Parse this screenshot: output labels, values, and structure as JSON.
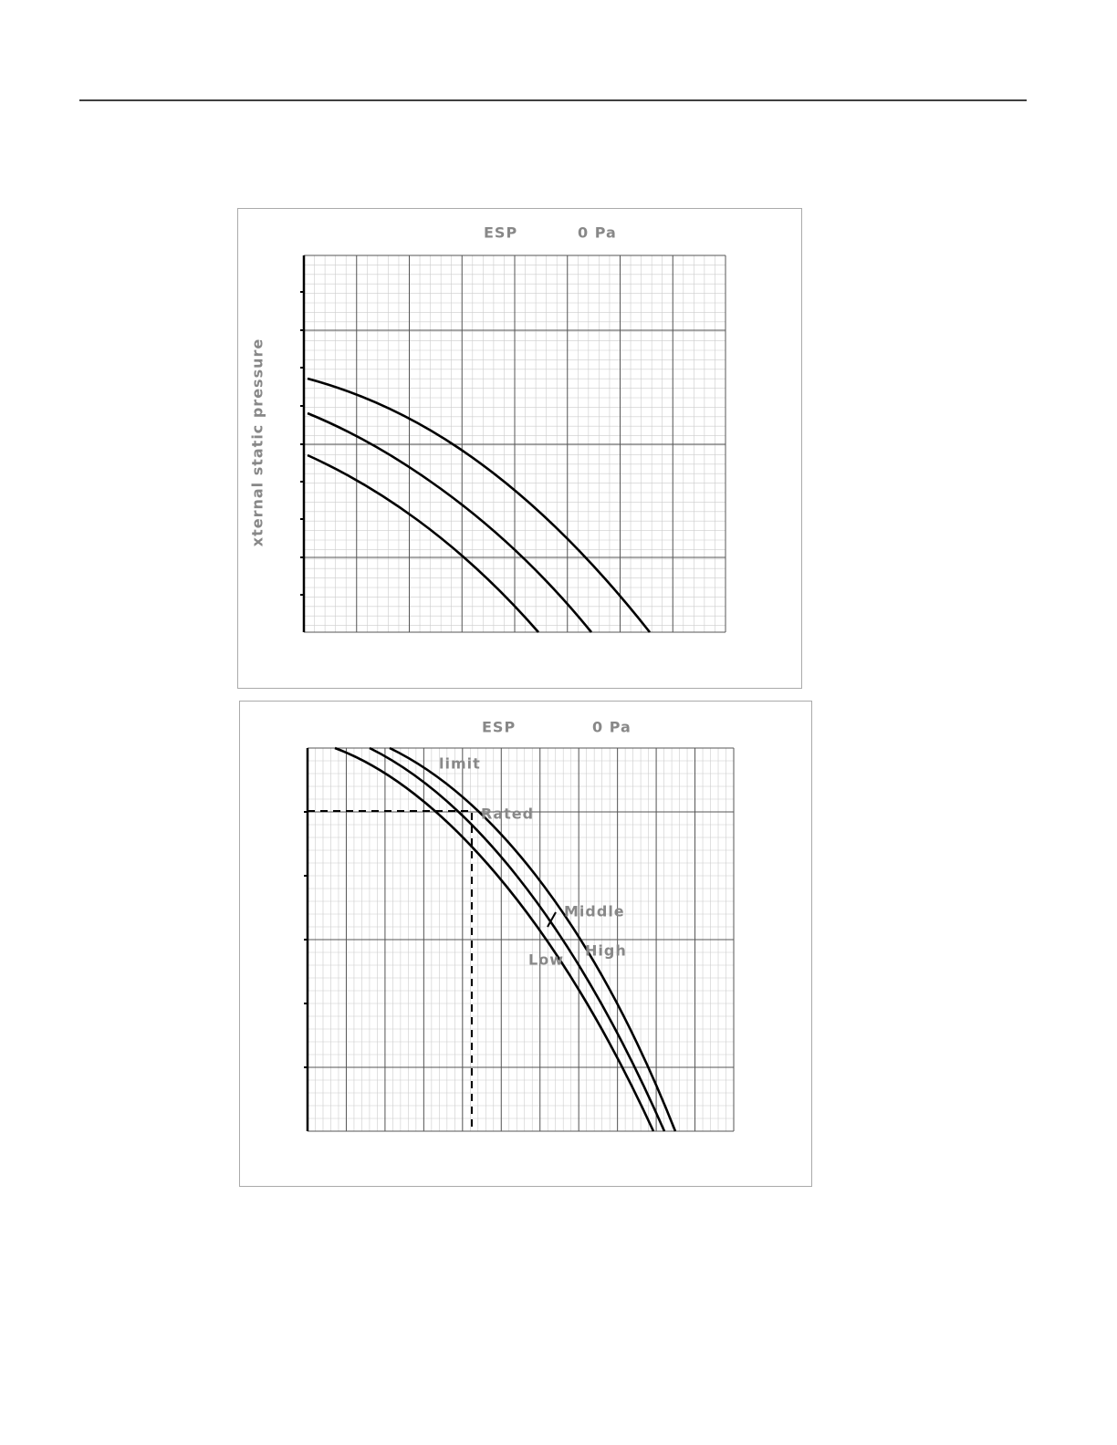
{
  "chart_top": {
    "esp": "ESP",
    "pressure": "0 Pa",
    "y_axis_label": "xternal static pressure"
  },
  "chart_bottom": {
    "esp": "ESP",
    "pressure": "0 Pa",
    "labels": {
      "limit": "limit",
      "rated": "Rated",
      "middle": "Middle",
      "high": "High",
      "low": "Low"
    }
  }
}
